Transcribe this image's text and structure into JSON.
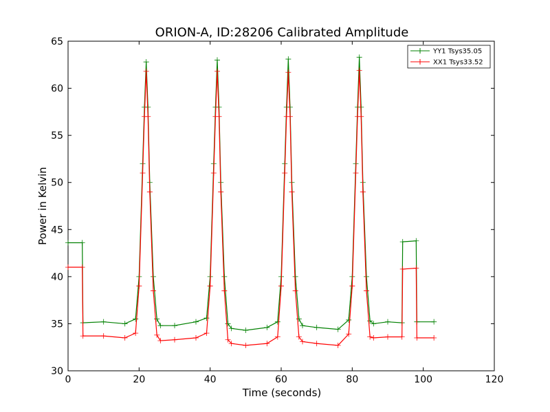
{
  "chart_data": {
    "type": "line",
    "title": "ORION-A, ID:28206 Calibrated Amplitude",
    "xlabel": "Time (seconds)",
    "ylabel": "Power in Kelvin",
    "xlim": [
      0,
      120
    ],
    "ylim": [
      30,
      65
    ],
    "xticks": [
      "0",
      "20",
      "40",
      "60",
      "80",
      "100",
      "120"
    ],
    "yticks": [
      "30",
      "35",
      "40",
      "45",
      "50",
      "55",
      "60",
      "65"
    ],
    "grid": false,
    "legend_position": "top-right",
    "series": [
      {
        "name": "YY1 Tsys35.05",
        "color": "#008000",
        "marker": "plus",
        "x": [
          0,
          4,
          4.2,
          10,
          16,
          19,
          20,
          21,
          21.5,
          22,
          22.5,
          23,
          24,
          25,
          26,
          30,
          36,
          39,
          40,
          41,
          41.5,
          42,
          42.5,
          43,
          44,
          45,
          46,
          50,
          56,
          59,
          60,
          61,
          61.5,
          62,
          62.5,
          63,
          64,
          65,
          66,
          70,
          76,
          79,
          80,
          81,
          81.5,
          82,
          82.5,
          83,
          84,
          85,
          86,
          90,
          94,
          94.2,
          98,
          98.2,
          103
        ],
        "y": [
          43.6,
          43.6,
          35.1,
          35.2,
          35.0,
          35.5,
          40.0,
          52.0,
          58.0,
          62.8,
          58.0,
          50.0,
          40.0,
          35.5,
          34.8,
          34.8,
          35.2,
          35.6,
          40.0,
          52.0,
          58.0,
          63.0,
          58.0,
          50.0,
          40.0,
          35.0,
          34.5,
          34.3,
          34.6,
          35.2,
          40.0,
          52.0,
          58.0,
          63.1,
          58.0,
          50.0,
          40.0,
          35.5,
          34.8,
          34.6,
          34.4,
          35.4,
          40.0,
          52.0,
          58.0,
          63.3,
          58.0,
          50.0,
          40.0,
          35.3,
          35.0,
          35.2,
          35.1,
          43.7,
          43.8,
          35.2,
          35.2
        ]
      },
      {
        "name": "XX1 Tsys33.52",
        "color": "#ff0000",
        "marker": "plus",
        "x": [
          0,
          4,
          4.2,
          10,
          16,
          19,
          20,
          21,
          21.5,
          22,
          22.5,
          23,
          24,
          25,
          26,
          30,
          36,
          39,
          40,
          41,
          41.5,
          42,
          42.5,
          43,
          44,
          45,
          46,
          50,
          56,
          59,
          60,
          61,
          61.5,
          62,
          62.5,
          63,
          64,
          65,
          66,
          70,
          76,
          79,
          80,
          81,
          81.5,
          82,
          82.5,
          83,
          84,
          85,
          86,
          90,
          94,
          94.2,
          98,
          98.2,
          103
        ],
        "y": [
          41.0,
          41.0,
          33.7,
          33.7,
          33.5,
          34.0,
          39.0,
          51.0,
          57.0,
          61.8,
          57.0,
          49.0,
          38.5,
          33.8,
          33.2,
          33.3,
          33.5,
          34.0,
          39.0,
          51.0,
          57.0,
          61.8,
          57.0,
          49.0,
          38.5,
          33.3,
          32.9,
          32.7,
          32.9,
          33.6,
          39.0,
          51.0,
          57.0,
          61.7,
          57.0,
          49.0,
          38.5,
          33.6,
          33.1,
          32.9,
          32.7,
          33.9,
          39.0,
          51.0,
          57.0,
          61.9,
          57.0,
          49.0,
          38.5,
          33.6,
          33.5,
          33.6,
          33.6,
          40.8,
          40.9,
          33.5,
          33.5
        ]
      }
    ]
  }
}
